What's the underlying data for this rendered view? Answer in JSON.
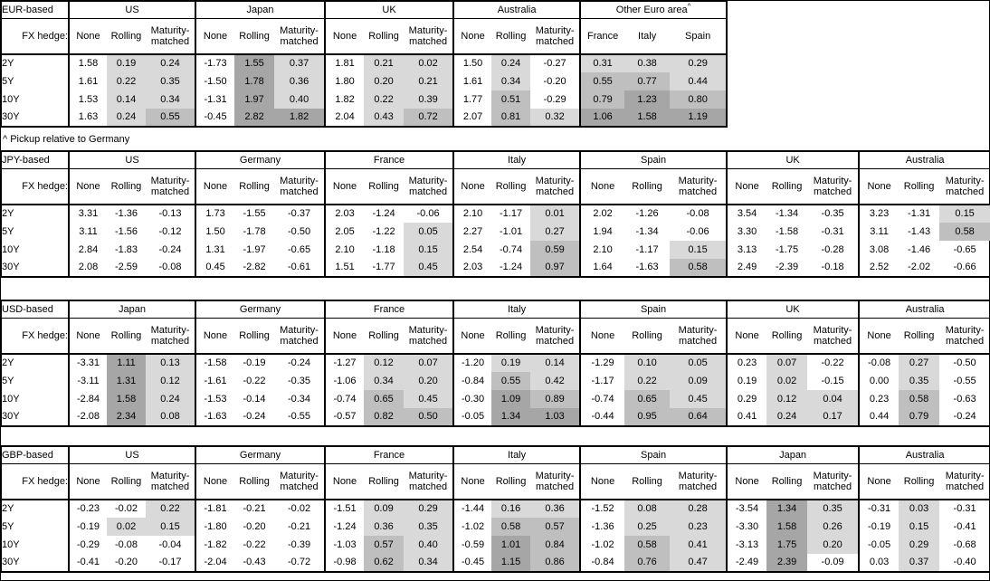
{
  "footnote": "^ Pickup relative to Germany",
  "hedge_row_label": "FX hedge:",
  "hedge_columns": [
    "None",
    "Rolling",
    "Maturity-matched"
  ],
  "tenors": [
    "2Y",
    "5Y",
    "10Y",
    "30Y"
  ],
  "shade_colors": {
    "negative": "#ffffff",
    "low": "#d9d9d9",
    "mid": "#bfbfbf",
    "high": "#a6a6a6"
  },
  "shade_thresholds": {
    "low_min": 0,
    "mid_min": 0.5,
    "high_min": 1.0
  },
  "tables": [
    {
      "label": "EUR-based",
      "groups": [
        {
          "name": "US",
          "columns": [
            "None",
            "Rolling",
            "Maturity-matched"
          ],
          "rows": [
            [
              "1.58",
              "0.19",
              "0.24"
            ],
            [
              "1.61",
              "0.22",
              "0.35"
            ],
            [
              "1.53",
              "0.14",
              "0.34"
            ],
            [
              "1.63",
              "0.24",
              "0.55"
            ]
          ]
        },
        {
          "name": "Japan",
          "columns": [
            "None",
            "Rolling",
            "Maturity-matched"
          ],
          "rows": [
            [
              "-1.73",
              "1.55",
              "0.37"
            ],
            [
              "-1.50",
              "1.78",
              "0.36"
            ],
            [
              "-1.31",
              "1.97",
              "0.40"
            ],
            [
              "-0.45",
              "2.82",
              "1.82"
            ]
          ]
        },
        {
          "name": "UK",
          "columns": [
            "None",
            "Rolling",
            "Maturity-matched"
          ],
          "rows": [
            [
              "1.81",
              "0.21",
              "0.02"
            ],
            [
              "1.80",
              "0.20",
              "0.21"
            ],
            [
              "1.82",
              "0.22",
              "0.39"
            ],
            [
              "2.04",
              "0.43",
              "0.72"
            ]
          ]
        },
        {
          "name": "Australia",
          "columns": [
            "None",
            "Rolling",
            "Maturity-matched"
          ],
          "rows": [
            [
              "1.50",
              "0.24",
              "-0.27"
            ],
            [
              "1.61",
              "0.34",
              "-0.20"
            ],
            [
              "1.77",
              "0.51",
              "-0.29"
            ],
            [
              "2.07",
              "0.81",
              "0.32"
            ]
          ]
        },
        {
          "name": "Other Euro area",
          "superscript": "^",
          "columns": [
            "France",
            "Italy",
            "Spain"
          ],
          "rows": [
            [
              "0.31",
              "0.38",
              "0.29"
            ],
            [
              "0.55",
              "0.77",
              "0.44"
            ],
            [
              "0.79",
              "1.23",
              "0.80"
            ],
            [
              "1.06",
              "1.58",
              "1.19"
            ]
          ]
        }
      ]
    },
    {
      "label": "JPY-based",
      "groups": [
        {
          "name": "US",
          "columns": [
            "None",
            "Rolling",
            "Maturity-matched"
          ],
          "rows": [
            [
              "3.31",
              "-1.36",
              "-0.13"
            ],
            [
              "3.11",
              "-1.56",
              "-0.12"
            ],
            [
              "2.84",
              "-1.83",
              "-0.24"
            ],
            [
              "2.08",
              "-2.59",
              "-0.08"
            ]
          ]
        },
        {
          "name": "Germany",
          "columns": [
            "None",
            "Rolling",
            "Maturity-matched"
          ],
          "rows": [
            [
              "1.73",
              "-1.55",
              "-0.37"
            ],
            [
              "1.50",
              "-1.78",
              "-0.50"
            ],
            [
              "1.31",
              "-1.97",
              "-0.65"
            ],
            [
              "0.45",
              "-2.82",
              "-0.61"
            ]
          ]
        },
        {
          "name": "France",
          "columns": [
            "None",
            "Rolling",
            "Maturity-matched"
          ],
          "rows": [
            [
              "2.03",
              "-1.24",
              "-0.06"
            ],
            [
              "2.05",
              "-1.22",
              "0.05"
            ],
            [
              "2.10",
              "-1.18",
              "0.15"
            ],
            [
              "1.51",
              "-1.77",
              "0.45"
            ]
          ]
        },
        {
          "name": "Italy",
          "columns": [
            "None",
            "Rolling",
            "Maturity-matched"
          ],
          "rows": [
            [
              "2.10",
              "-1.17",
              "0.01"
            ],
            [
              "2.27",
              "-1.01",
              "0.27"
            ],
            [
              "2.54",
              "-0.74",
              "0.59"
            ],
            [
              "2.03",
              "-1.24",
              "0.97"
            ]
          ]
        },
        {
          "name": "Spain",
          "columns": [
            "None",
            "Rolling",
            "Maturity-matched"
          ],
          "rows": [
            [
              "2.02",
              "-1.26",
              "-0.08"
            ],
            [
              "1.94",
              "-1.34",
              "-0.06"
            ],
            [
              "2.10",
              "-1.17",
              "0.15"
            ],
            [
              "1.64",
              "-1.63",
              "0.58"
            ]
          ]
        },
        {
          "name": "UK",
          "columns": [
            "None",
            "Rolling",
            "Maturity-matched"
          ],
          "rows": [
            [
              "3.54",
              "-1.34",
              "-0.35"
            ],
            [
              "3.30",
              "-1.58",
              "-0.31"
            ],
            [
              "3.13",
              "-1.75",
              "-0.28"
            ],
            [
              "2.49",
              "-2.39",
              "-0.18"
            ]
          ]
        },
        {
          "name": "Australia",
          "columns": [
            "None",
            "Rolling",
            "Maturity-matched"
          ],
          "rows": [
            [
              "3.23",
              "-1.31",
              "0.15"
            ],
            [
              "3.11",
              "-1.43",
              "0.58"
            ],
            [
              "3.08",
              "-1.46",
              "-0.65"
            ],
            [
              "2.52",
              "-2.02",
              "-0.66"
            ]
          ]
        }
      ]
    },
    {
      "label": "USD-based",
      "groups": [
        {
          "name": "Japan",
          "columns": [
            "None",
            "Rolling",
            "Maturity-matched"
          ],
          "rows": [
            [
              "-3.31",
              "1.11",
              "0.13"
            ],
            [
              "-3.11",
              "1.31",
              "0.12"
            ],
            [
              "-2.84",
              "1.58",
              "0.24"
            ],
            [
              "-2.08",
              "2.34",
              "0.08"
            ]
          ]
        },
        {
          "name": "Germany",
          "columns": [
            "None",
            "Rolling",
            "Maturity-matched"
          ],
          "rows": [
            [
              "-1.58",
              "-0.19",
              "-0.24"
            ],
            [
              "-1.61",
              "-0.22",
              "-0.35"
            ],
            [
              "-1.53",
              "-0.14",
              "-0.34"
            ],
            [
              "-1.63",
              "-0.24",
              "-0.55"
            ]
          ]
        },
        {
          "name": "France",
          "columns": [
            "None",
            "Rolling",
            "Maturity-matched"
          ],
          "rows": [
            [
              "-1.27",
              "0.12",
              "0.07"
            ],
            [
              "-1.06",
              "0.34",
              "0.20"
            ],
            [
              "-0.74",
              "0.65",
              "0.45"
            ],
            [
              "-0.57",
              "0.82",
              "0.50"
            ]
          ]
        },
        {
          "name": "Italy",
          "columns": [
            "None",
            "Rolling",
            "Maturity-matched"
          ],
          "rows": [
            [
              "-1.20",
              "0.19",
              "0.14"
            ],
            [
              "-0.84",
              "0.55",
              "0.42"
            ],
            [
              "-0.30",
              "1.09",
              "0.89"
            ],
            [
              "-0.05",
              "1.34",
              "1.03"
            ]
          ]
        },
        {
          "name": "Spain",
          "columns": [
            "None",
            "Rolling",
            "Maturity-matched"
          ],
          "rows": [
            [
              "-1.29",
              "0.10",
              "0.05"
            ],
            [
              "-1.17",
              "0.22",
              "0.09"
            ],
            [
              "-0.74",
              "0.65",
              "0.45"
            ],
            [
              "-0.44",
              "0.95",
              "0.64"
            ]
          ]
        },
        {
          "name": "UK",
          "columns": [
            "None",
            "Rolling",
            "Maturity-matched"
          ],
          "rows": [
            [
              "0.23",
              "0.07",
              "-0.22"
            ],
            [
              "0.19",
              "0.02",
              "-0.15"
            ],
            [
              "0.29",
              "0.12",
              "0.04"
            ],
            [
              "0.41",
              "0.24",
              "0.17"
            ]
          ]
        },
        {
          "name": "Australia",
          "columns": [
            "None",
            "Rolling",
            "Maturity-matched"
          ],
          "rows": [
            [
              "-0.08",
              "0.27",
              "-0.50"
            ],
            [
              "0.00",
              "0.35",
              "-0.55"
            ],
            [
              "0.23",
              "0.58",
              "-0.63"
            ],
            [
              "0.44",
              "0.79",
              "-0.24"
            ]
          ]
        }
      ]
    },
    {
      "label": "GBP-based",
      "groups": [
        {
          "name": "US",
          "columns": [
            "None",
            "Rolling",
            "Maturity-matched"
          ],
          "rows": [
            [
              "-0.23",
              "-0.02",
              "0.22"
            ],
            [
              "-0.19",
              "0.02",
              "0.15"
            ],
            [
              "-0.29",
              "-0.08",
              "-0.04"
            ],
            [
              "-0.41",
              "-0.20",
              "-0.17"
            ]
          ]
        },
        {
          "name": "Germany",
          "columns": [
            "None",
            "Rolling",
            "Maturity-matched"
          ],
          "rows": [
            [
              "-1.81",
              "-0.21",
              "-0.02"
            ],
            [
              "-1.80",
              "-0.20",
              "-0.21"
            ],
            [
              "-1.82",
              "-0.22",
              "-0.39"
            ],
            [
              "-2.04",
              "-0.43",
              "-0.72"
            ]
          ]
        },
        {
          "name": "France",
          "columns": [
            "None",
            "Rolling",
            "Maturity-matched"
          ],
          "rows": [
            [
              "-1.51",
              "0.09",
              "0.29"
            ],
            [
              "-1.24",
              "0.36",
              "0.35"
            ],
            [
              "-1.03",
              "0.57",
              "0.40"
            ],
            [
              "-0.98",
              "0.62",
              "0.34"
            ]
          ]
        },
        {
          "name": "Italy",
          "columns": [
            "None",
            "Rolling",
            "Maturity-matched"
          ],
          "rows": [
            [
              "-1.44",
              "0.16",
              "0.36"
            ],
            [
              "-1.02",
              "0.58",
              "0.57"
            ],
            [
              "-0.59",
              "1.01",
              "0.84"
            ],
            [
              "-0.45",
              "1.15",
              "0.86"
            ]
          ]
        },
        {
          "name": "Spain",
          "columns": [
            "None",
            "Rolling",
            "Maturity-matched"
          ],
          "rows": [
            [
              "-1.52",
              "0.08",
              "0.28"
            ],
            [
              "-1.36",
              "0.25",
              "0.23"
            ],
            [
              "-1.02",
              "0.58",
              "0.41"
            ],
            [
              "-0.84",
              "0.76",
              "0.47"
            ]
          ]
        },
        {
          "name": "Japan",
          "columns": [
            "None",
            "Rolling",
            "Maturity-matched"
          ],
          "rows": [
            [
              "-3.54",
              "1.34",
              "0.35"
            ],
            [
              "-3.30",
              "1.58",
              "0.26"
            ],
            [
              "-3.13",
              "1.75",
              "0.20"
            ],
            [
              "-2.49",
              "2.39",
              "-0.09"
            ]
          ]
        },
        {
          "name": "Australia",
          "columns": [
            "None",
            "Rolling",
            "Maturity-matched"
          ],
          "rows": [
            [
              "-0.31",
              "0.03",
              "-0.31"
            ],
            [
              "-0.19",
              "0.15",
              "-0.41"
            ],
            [
              "-0.05",
              "0.29",
              "-0.68"
            ],
            [
              "0.03",
              "0.37",
              "-0.40"
            ]
          ]
        }
      ]
    }
  ]
}
